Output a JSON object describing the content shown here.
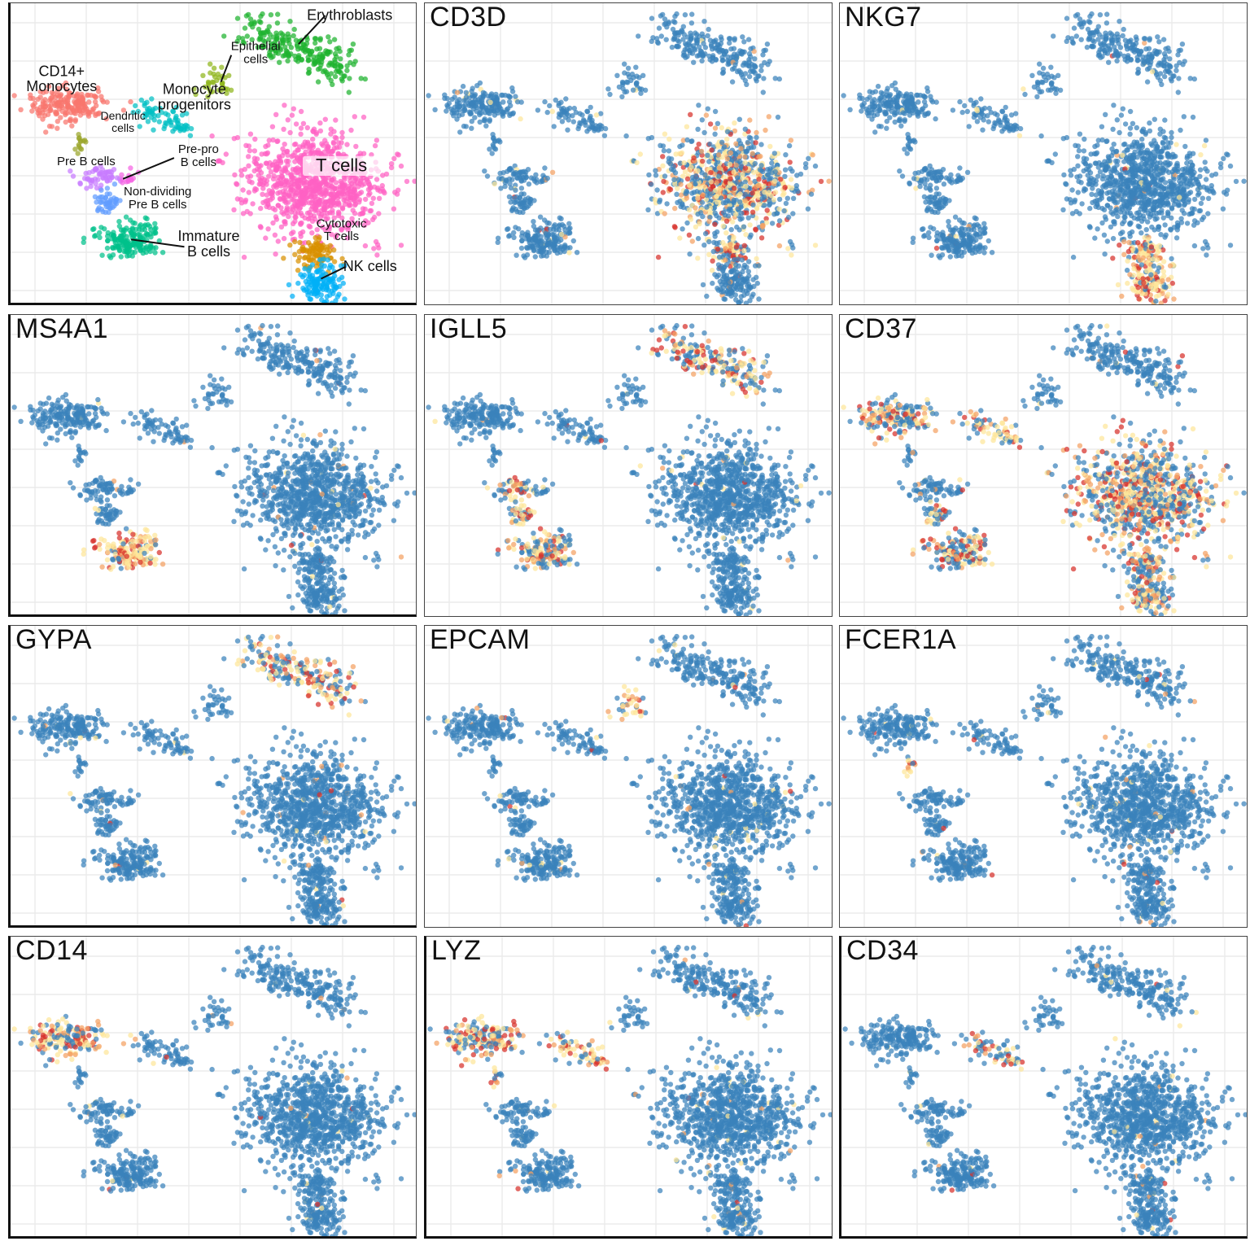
{
  "chart_data": [
    {
      "type": "scatter",
      "title": "",
      "color_by": "cell type",
      "clusters": [
        {
          "name": "Erythroblasts",
          "label": "Erythroblasts",
          "color": "#1fb32f"
        },
        {
          "name": "Epithelial cells",
          "label": "Epithelial\ncells",
          "color": "#8fb51c"
        },
        {
          "name": "CD14+ Monocytes",
          "label": "CD14+\nMonocytes",
          "color": "#f8766d"
        },
        {
          "name": "Monocyte progenitors",
          "label": "Monocyte\nprogenitors",
          "color": "#00bfc4"
        },
        {
          "name": "Dendritic cells",
          "label": "Dendritic\ncells",
          "color": "#9aa52a"
        },
        {
          "name": "Pre B cells",
          "label": "Pre B cells",
          "color": "#c77cff"
        },
        {
          "name": "Pre-pro B cells",
          "label": "Pre-pro\nB cells",
          "color": "#f564e3"
        },
        {
          "name": "Non-dividing Pre B cells",
          "label": "Non-dividing\nPre B cells",
          "color": "#619cff"
        },
        {
          "name": "Immature B cells",
          "label": "Immature\nB cells",
          "color": "#00c08b"
        },
        {
          "name": "T cells",
          "label": "T cells",
          "color": "#ff61c3"
        },
        {
          "name": "Cytotoxic T cells",
          "label": "Cytotoxic\nT cells",
          "color": "#d89000"
        },
        {
          "name": "NK cells",
          "label": "NK cells",
          "color": "#00b0f6"
        }
      ]
    },
    {
      "type": "scatter",
      "title": "CD3D",
      "color_by": "expression",
      "high_in": [
        "T cells",
        "Cytotoxic T cells"
      ],
      "level": 0.55
    },
    {
      "type": "scatter",
      "title": "NKG7",
      "color_by": "expression",
      "high_in": [
        "NK cells",
        "Cytotoxic T cells"
      ],
      "level": 0.8
    },
    {
      "type": "scatter",
      "title": "MS4A1",
      "color_by": "expression",
      "high_in": [
        "Immature B cells"
      ],
      "level": 0.8
    },
    {
      "type": "scatter",
      "title": "IGLL5",
      "color_by": "expression",
      "high_in": [
        "Immature B cells",
        "Non-dividing Pre B cells",
        "Pre B cells",
        "Erythroblasts"
      ],
      "level": 0.6
    },
    {
      "type": "scatter",
      "title": "CD37",
      "color_by": "expression",
      "high_in": [
        "Immature B cells",
        "Non-dividing Pre B cells",
        "CD14+ Monocytes",
        "T cells",
        "Cytotoxic T cells",
        "NK cells",
        "Monocyte progenitors"
      ],
      "level": 0.6
    },
    {
      "type": "scatter",
      "title": "GYPA",
      "color_by": "expression",
      "high_in": [
        "Erythroblasts"
      ],
      "level": 0.65
    },
    {
      "type": "scatter",
      "title": "EPCAM",
      "color_by": "expression",
      "high_in": [
        "Epithelial cells"
      ],
      "level": 0.8
    },
    {
      "type": "scatter",
      "title": "FCER1A",
      "color_by": "expression",
      "high_in": [
        "Dendritic cells"
      ],
      "level": 0.8
    },
    {
      "type": "scatter",
      "title": "CD14",
      "color_by": "expression",
      "high_in": [
        "CD14+ Monocytes"
      ],
      "level": 0.7
    },
    {
      "type": "scatter",
      "title": "LYZ",
      "color_by": "expression",
      "high_in": [
        "CD14+ Monocytes",
        "Monocyte progenitors",
        "Dendritic cells"
      ],
      "level": 0.7
    },
    {
      "type": "scatter",
      "title": "CD34",
      "color_by": "expression",
      "high_in": [
        "Monocyte progenitors"
      ],
      "level": 0.5
    }
  ],
  "palette": {
    "base_point": "#3a82bb",
    "expression_low": "#fde69a",
    "expression_mid": "#f4a162",
    "expression_high": "#d7302b",
    "grid_line": "#ebebeb"
  }
}
